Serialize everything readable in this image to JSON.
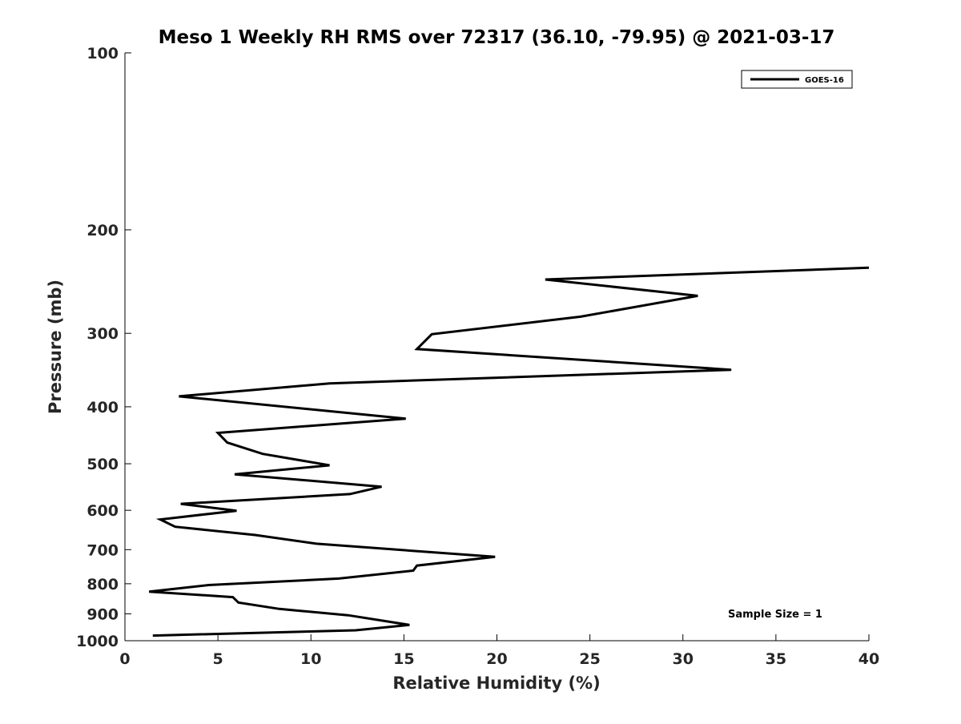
{
  "chart_data": {
    "type": "line",
    "title": "Meso 1 Weekly RH RMS over 72317 (36.10, -79.95) @ 2021-03-17",
    "xlabel": "Relative Humidity (%)",
    "ylabel": "Pressure (mb)",
    "xlim": [
      0,
      40
    ],
    "ylim": [
      1000,
      100
    ],
    "y_scale": "log",
    "y_reversed": true,
    "x_ticks": [
      0,
      5,
      10,
      15,
      20,
      25,
      30,
      35,
      40
    ],
    "y_ticks": [
      100,
      200,
      300,
      400,
      500,
      600,
      700,
      800,
      900,
      1000
    ],
    "grid": false,
    "legend_position": "top-right",
    "series": [
      {
        "name": "GOES-16",
        "color": "#000000",
        "points": [
          {
            "x": 40.0,
            "y": 232
          },
          {
            "x": 22.6,
            "y": 243
          },
          {
            "x": 30.8,
            "y": 259
          },
          {
            "x": 24.5,
            "y": 281
          },
          {
            "x": 16.5,
            "y": 301
          },
          {
            "x": 15.7,
            "y": 319
          },
          {
            "x": 32.6,
            "y": 346
          },
          {
            "x": 11.0,
            "y": 365
          },
          {
            "x": 2.9,
            "y": 384
          },
          {
            "x": 15.1,
            "y": 419
          },
          {
            "x": 5.0,
            "y": 443
          },
          {
            "x": 5.5,
            "y": 460
          },
          {
            "x": 7.4,
            "y": 481
          },
          {
            "x": 11.0,
            "y": 503
          },
          {
            "x": 5.9,
            "y": 521
          },
          {
            "x": 13.8,
            "y": 547
          },
          {
            "x": 12.1,
            "y": 563
          },
          {
            "x": 3.0,
            "y": 585
          },
          {
            "x": 6.0,
            "y": 601
          },
          {
            "x": 1.9,
            "y": 622
          },
          {
            "x": 2.7,
            "y": 640
          },
          {
            "x": 7.0,
            "y": 661
          },
          {
            "x": 10.3,
            "y": 684
          },
          {
            "x": 19.9,
            "y": 720
          },
          {
            "x": 15.7,
            "y": 745
          },
          {
            "x": 15.5,
            "y": 760
          },
          {
            "x": 11.5,
            "y": 784
          },
          {
            "x": 4.5,
            "y": 804
          },
          {
            "x": 1.3,
            "y": 825
          },
          {
            "x": 5.8,
            "y": 843
          },
          {
            "x": 6.1,
            "y": 861
          },
          {
            "x": 8.3,
            "y": 883
          },
          {
            "x": 12.0,
            "y": 905
          },
          {
            "x": 15.3,
            "y": 940
          },
          {
            "x": 12.4,
            "y": 960
          },
          {
            "x": 1.5,
            "y": 980
          }
        ]
      }
    ],
    "annotations": [
      {
        "text": "Sample Size = 1",
        "position": "bottom-right"
      }
    ]
  }
}
